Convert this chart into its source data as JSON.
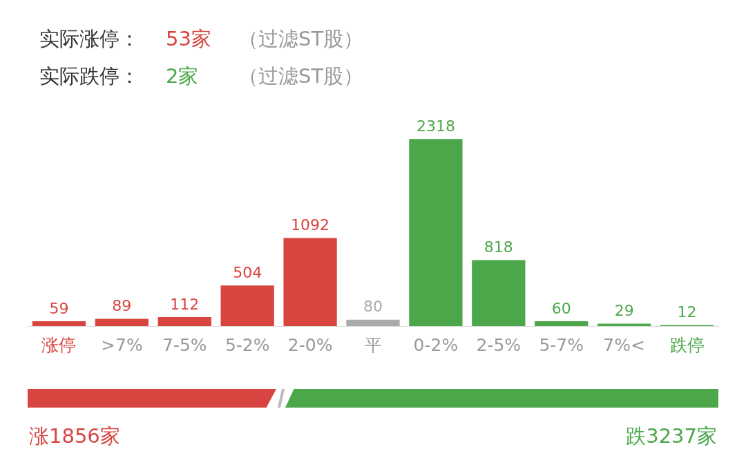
{
  "chart_data": {
    "type": "bar",
    "categories": [
      "涨停",
      ">7%",
      "7-5%",
      "5-2%",
      "2-0%",
      "平",
      "0-2%",
      "2-5%",
      "5-7%",
      "7%<",
      "跌停"
    ],
    "values": [
      59,
      89,
      112,
      504,
      1092,
      80,
      2318,
      818,
      60,
      29,
      12
    ],
    "colors": [
      "#d8443f",
      "#d8443f",
      "#d8443f",
      "#d8443f",
      "#d8443f",
      "#aaaaaa",
      "#4ba749",
      "#4ba749",
      "#4ba749",
      "#4ba749",
      "#4ba749"
    ],
    "data_labels": true,
    "grid": false,
    "legend": false,
    "annotations": [
      "实际涨停：",
      "53家",
      "（过滤ST股）",
      "实际跌停：",
      "2家",
      "（过滤ST股）",
      "涨1856家",
      "跌3237家"
    ]
  }
}
